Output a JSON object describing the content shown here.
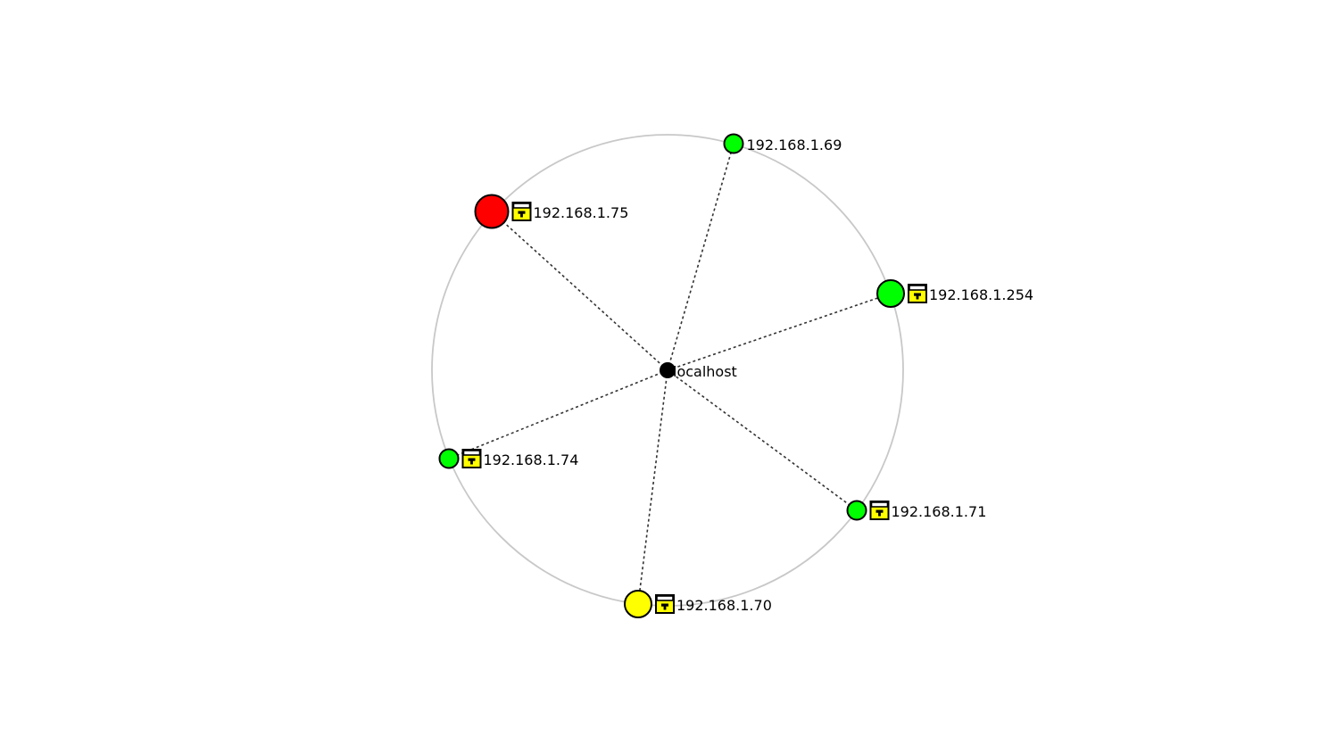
{
  "center": {
    "label": "localhost",
    "color": "#000000"
  },
  "legend_colors": {
    "up": "#00ff00",
    "warning": "#ffff00",
    "down": "#ff0000",
    "lock_fill": "#ffff00"
  },
  "hosts": [
    {
      "id": "host-69",
      "label": "192.168.1.69",
      "status": "up",
      "color": "#00ff00",
      "size": "small",
      "locked": false,
      "icon": "none"
    },
    {
      "id": "host-254",
      "label": "192.168.1.254",
      "status": "up",
      "color": "#00ff00",
      "size": "large",
      "locked": true,
      "icon": "padlock-icon"
    },
    {
      "id": "host-71",
      "label": "192.168.1.71",
      "status": "up",
      "color": "#00ff00",
      "size": "small",
      "locked": true,
      "icon": "padlock-icon"
    },
    {
      "id": "host-70",
      "label": "192.168.1.70",
      "status": "warning",
      "color": "#ffff00",
      "size": "large",
      "locked": true,
      "icon": "padlock-icon"
    },
    {
      "id": "host-74",
      "label": "192.168.1.74",
      "status": "up",
      "color": "#00ff00",
      "size": "small",
      "locked": true,
      "icon": "padlock-icon"
    },
    {
      "id": "host-75",
      "label": "192.168.1.75",
      "status": "down",
      "color": "#ff0000",
      "size": "xlarge",
      "locked": true,
      "icon": "padlock-icon"
    }
  ]
}
